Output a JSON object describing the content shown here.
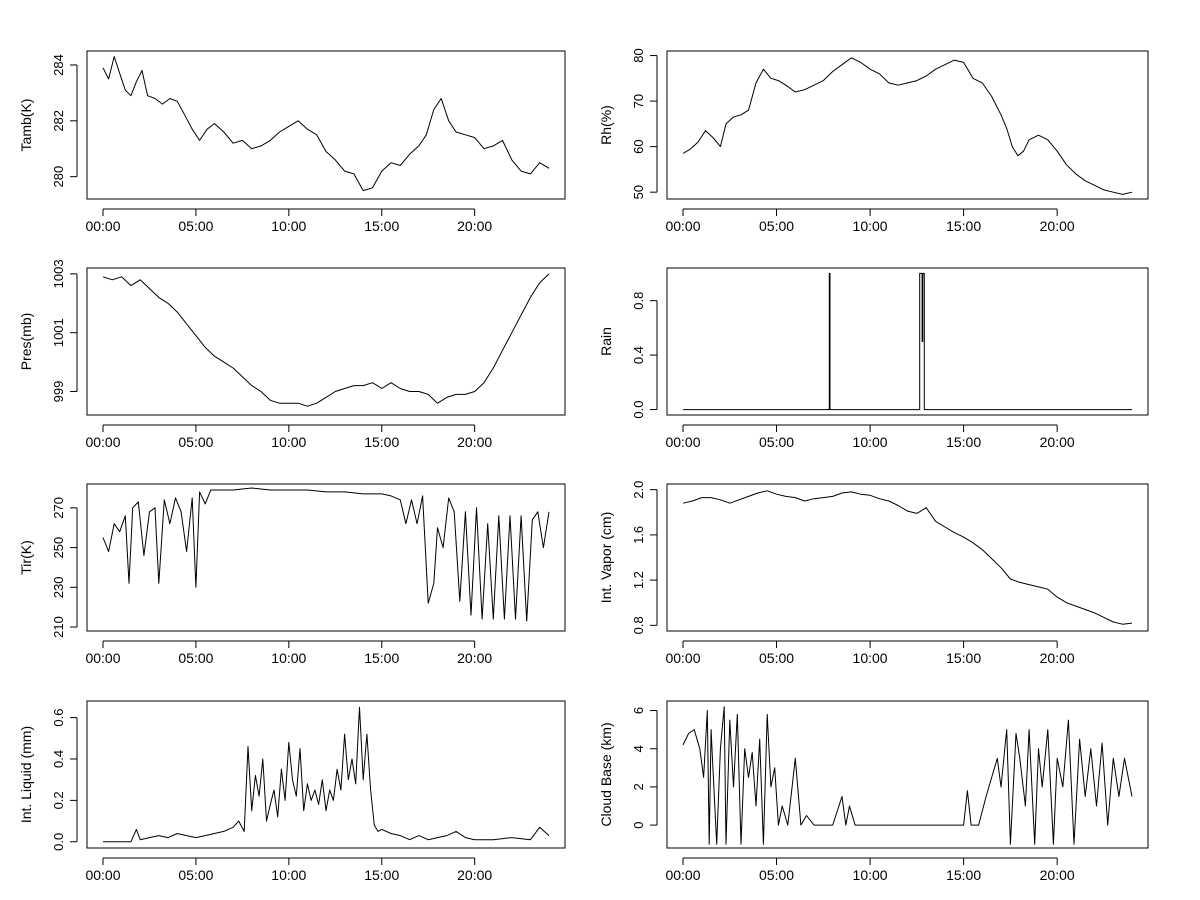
{
  "chart_data": [
    {
      "type": "line",
      "ylabel": "Tamb(K)",
      "xlim": [
        0,
        24
      ],
      "ylim": [
        279.2,
        284.5
      ],
      "x_ticks": [
        0,
        5,
        10,
        15,
        20
      ],
      "x_tick_labels": [
        "00:00",
        "05:00",
        "10:00",
        "15:00",
        "20:00"
      ],
      "y_ticks": [
        280,
        282,
        284
      ],
      "y_tick_labels": [
        "280",
        "282",
        "284"
      ],
      "x": [
        0,
        0.3,
        0.6,
        0.9,
        1.2,
        1.5,
        1.8,
        2.1,
        2.4,
        2.8,
        3.2,
        3.6,
        4.0,
        4.4,
        4.8,
        5.2,
        5.6,
        6.0,
        6.5,
        7.0,
        7.5,
        8.0,
        8.5,
        9.0,
        9.5,
        10.0,
        10.5,
        11.0,
        11.5,
        12.0,
        12.5,
        13.0,
        13.5,
        14.0,
        14.5,
        15.0,
        15.5,
        16.0,
        16.5,
        17.0,
        17.4,
        17.8,
        18.2,
        18.6,
        19.0,
        19.5,
        20.0,
        20.5,
        21.0,
        21.5,
        22.0,
        22.5,
        23.0,
        23.5,
        24.0
      ],
      "y": [
        283.9,
        283.5,
        284.3,
        283.7,
        283.1,
        282.9,
        283.4,
        283.8,
        282.9,
        282.8,
        282.6,
        282.8,
        282.7,
        282.2,
        281.7,
        281.3,
        281.7,
        281.9,
        281.6,
        281.2,
        281.3,
        281.0,
        281.1,
        281.3,
        281.6,
        281.8,
        282.0,
        281.7,
        281.5,
        280.9,
        280.6,
        280.2,
        280.1,
        279.5,
        279.6,
        280.2,
        280.5,
        280.4,
        280.8,
        281.1,
        281.5,
        282.4,
        282.8,
        282.0,
        281.6,
        281.5,
        281.4,
        281.0,
        281.1,
        281.3,
        280.6,
        280.2,
        280.1,
        280.5,
        280.3
      ]
    },
    {
      "type": "line",
      "ylabel": "Rh(%)",
      "xlim": [
        0,
        24
      ],
      "ylim": [
        48.5,
        81
      ],
      "x_ticks": [
        0,
        5,
        10,
        15,
        20
      ],
      "x_tick_labels": [
        "00:00",
        "05:00",
        "10:00",
        "15:00",
        "20:00"
      ],
      "y_ticks": [
        50,
        60,
        70,
        80
      ],
      "y_tick_labels": [
        "50",
        "60",
        "70",
        "80"
      ],
      "x": [
        0,
        0.4,
        0.8,
        1.2,
        1.6,
        2.0,
        2.3,
        2.7,
        3.1,
        3.5,
        3.9,
        4.3,
        4.7,
        5.1,
        5.5,
        6.0,
        6.5,
        7.0,
        7.5,
        8.0,
        8.5,
        9.0,
        9.5,
        10.0,
        10.5,
        11.0,
        11.5,
        12.0,
        12.5,
        13.0,
        13.5,
        14.0,
        14.5,
        15.0,
        15.5,
        16.0,
        16.5,
        17.0,
        17.3,
        17.6,
        17.9,
        18.2,
        18.5,
        19.0,
        19.5,
        20.0,
        20.5,
        21.0,
        21.5,
        22.0,
        22.5,
        23.0,
        23.5,
        24.0
      ],
      "y": [
        58.5,
        59.5,
        61.0,
        63.5,
        62.0,
        60.0,
        65.0,
        66.5,
        67.0,
        68.0,
        74.0,
        77.0,
        75.0,
        74.5,
        73.5,
        72.0,
        72.5,
        73.5,
        74.5,
        76.5,
        78.0,
        79.5,
        78.5,
        77.0,
        76.0,
        74.0,
        73.5,
        74.0,
        74.5,
        75.5,
        77.0,
        78.0,
        79.0,
        78.5,
        75.0,
        74.0,
        71.0,
        67.0,
        64.0,
        60.0,
        58.0,
        59.0,
        61.5,
        62.5,
        61.5,
        59.0,
        56.0,
        54.0,
        52.5,
        51.5,
        50.5,
        50.0,
        49.5,
        50.0
      ]
    },
    {
      "type": "line",
      "ylabel": "Pres(mb)",
      "xlim": [
        0,
        24
      ],
      "ylim": [
        998.2,
        1003.2
      ],
      "x_ticks": [
        0,
        5,
        10,
        15,
        20
      ],
      "x_tick_labels": [
        "00:00",
        "05:00",
        "10:00",
        "15:00",
        "20:00"
      ],
      "y_ticks": [
        999,
        1001,
        1003
      ],
      "y_tick_labels": [
        "999",
        "1001",
        "1003"
      ],
      "x": [
        0,
        0.5,
        1.0,
        1.5,
        2.0,
        2.5,
        3.0,
        3.5,
        4.0,
        4.5,
        5.0,
        5.5,
        6.0,
        6.5,
        7.0,
        7.5,
        8.0,
        8.5,
        9.0,
        9.5,
        10.0,
        10.5,
        11.0,
        11.5,
        12.0,
        12.5,
        13.0,
        13.5,
        14.0,
        14.5,
        15.0,
        15.5,
        16.0,
        16.5,
        17.0,
        17.5,
        18.0,
        18.5,
        19.0,
        19.5,
        20.0,
        20.5,
        21.0,
        21.5,
        22.0,
        22.5,
        23.0,
        23.5,
        24.0
      ],
      "y": [
        1002.9,
        1002.8,
        1002.9,
        1002.6,
        1002.8,
        1002.5,
        1002.2,
        1002.0,
        1001.7,
        1001.3,
        1000.9,
        1000.5,
        1000.2,
        1000.0,
        999.8,
        999.5,
        999.2,
        999.0,
        998.7,
        998.6,
        998.6,
        998.6,
        998.5,
        998.6,
        998.8,
        999.0,
        999.1,
        999.2,
        999.2,
        999.3,
        999.1,
        999.3,
        999.1,
        999.0,
        999.0,
        998.9,
        998.6,
        998.8,
        998.9,
        998.9,
        999.0,
        999.3,
        999.8,
        1000.4,
        1001.0,
        1001.6,
        1002.2,
        1002.7,
        1003.0
      ]
    },
    {
      "type": "line",
      "ylabel": "Rain",
      "xlim": [
        0,
        24
      ],
      "ylim": [
        -0.04,
        1.04
      ],
      "x_ticks": [
        0,
        5,
        10,
        15,
        20
      ],
      "x_tick_labels": [
        "00:00",
        "05:00",
        "10:00",
        "15:00",
        "20:00"
      ],
      "y_ticks": [
        0.0,
        0.4,
        0.8
      ],
      "y_tick_labels": [
        "0.0",
        "0.4",
        "0.8"
      ],
      "x": [
        0,
        7.82,
        7.82,
        7.86,
        7.86,
        12.65,
        12.65,
        12.78,
        12.78,
        12.82,
        12.82,
        12.9,
        12.9,
        24.0
      ],
      "y": [
        0,
        0,
        1,
        1,
        0,
        0,
        1,
        1,
        0.5,
        0.5,
        1,
        1,
        0,
        0
      ]
    },
    {
      "type": "line",
      "ylabel": "Tir(K)",
      "xlim": [
        0,
        24
      ],
      "ylim": [
        208,
        282
      ],
      "x_ticks": [
        0,
        5,
        10,
        15,
        20
      ],
      "x_tick_labels": [
        "00:00",
        "05:00",
        "10:00",
        "15:00",
        "20:00"
      ],
      "y_ticks": [
        210,
        230,
        250,
        270
      ],
      "y_tick_labels": [
        "210",
        "230",
        "250",
        "270"
      ],
      "x": [
        0,
        0.3,
        0.6,
        0.9,
        1.2,
        1.4,
        1.6,
        1.9,
        2.2,
        2.5,
        2.8,
        3.0,
        3.3,
        3.6,
        3.9,
        4.2,
        4.5,
        4.8,
        5.0,
        5.2,
        5.5,
        5.8,
        6.1,
        6.5,
        7.0,
        8.0,
        9.0,
        10.0,
        11.0,
        12.0,
        13.0,
        14.0,
        15.0,
        15.5,
        16.0,
        16.3,
        16.6,
        16.9,
        17.2,
        17.5,
        17.8,
        18.0,
        18.3,
        18.6,
        18.9,
        19.2,
        19.5,
        19.8,
        20.1,
        20.4,
        20.7,
        21.0,
        21.3,
        21.6,
        21.9,
        22.2,
        22.5,
        22.8,
        23.1,
        23.4,
        23.7,
        24.0
      ],
      "y": [
        255,
        248,
        262,
        258,
        266,
        232,
        270,
        273,
        246,
        268,
        270,
        232,
        274,
        262,
        275,
        268,
        248,
        275,
        230,
        278,
        272,
        279,
        279,
        279,
        279,
        280,
        279,
        279,
        279,
        278,
        278,
        277,
        277,
        276,
        274,
        262,
        274,
        262,
        276,
        222,
        232,
        260,
        250,
        275,
        268,
        223,
        268,
        216,
        270,
        214,
        262,
        214,
        266,
        214,
        266,
        214,
        266,
        213,
        264,
        268,
        250,
        268
      ]
    },
    {
      "type": "line",
      "ylabel": "Int. Vapor (cm)",
      "xlim": [
        0,
        24
      ],
      "ylim": [
        0.75,
        2.05
      ],
      "x_ticks": [
        0,
        5,
        10,
        15,
        20
      ],
      "x_tick_labels": [
        "00:00",
        "05:00",
        "10:00",
        "15:00",
        "20:00"
      ],
      "y_ticks": [
        0.8,
        1.2,
        1.6,
        2.0
      ],
      "y_tick_labels": [
        "0.8",
        "1.2",
        "1.6",
        "2.0"
      ],
      "x": [
        0,
        0.5,
        1.0,
        1.5,
        2.0,
        2.5,
        3.0,
        3.5,
        4.0,
        4.5,
        5.0,
        5.5,
        6.0,
        6.5,
        7.0,
        7.5,
        8.0,
        8.5,
        9.0,
        9.5,
        10.0,
        10.5,
        11.0,
        11.5,
        12.0,
        12.5,
        13.0,
        13.5,
        14.0,
        14.5,
        15.0,
        15.5,
        16.0,
        16.5,
        17.0,
        17.5,
        18.0,
        18.5,
        19.0,
        19.5,
        20.0,
        20.5,
        21.0,
        21.5,
        22.0,
        22.5,
        23.0,
        23.5,
        24.0
      ],
      "y": [
        1.88,
        1.9,
        1.93,
        1.93,
        1.91,
        1.88,
        1.91,
        1.94,
        1.97,
        1.99,
        1.96,
        1.94,
        1.93,
        1.9,
        1.92,
        1.93,
        1.94,
        1.97,
        1.98,
        1.96,
        1.95,
        1.92,
        1.9,
        1.86,
        1.81,
        1.79,
        1.84,
        1.72,
        1.67,
        1.62,
        1.58,
        1.53,
        1.47,
        1.39,
        1.31,
        1.21,
        1.18,
        1.16,
        1.14,
        1.12,
        1.05,
        1.0,
        0.97,
        0.94,
        0.91,
        0.87,
        0.83,
        0.81,
        0.82
      ]
    },
    {
      "type": "line",
      "ylabel": "Int. Liquid (mm)",
      "xlim": [
        0,
        24
      ],
      "ylim": [
        -0.03,
        0.68
      ],
      "x_ticks": [
        0,
        5,
        10,
        15,
        20
      ],
      "x_tick_labels": [
        "00:00",
        "05:00",
        "10:00",
        "15:00",
        "20:00"
      ],
      "y_ticks": [
        0.0,
        0.2,
        0.4,
        0.6
      ],
      "y_tick_labels": [
        "0.0",
        "0.2",
        "0.4",
        "0.6"
      ],
      "x": [
        0,
        1.5,
        1.8,
        2.0,
        2.5,
        3.0,
        3.5,
        4.0,
        4.5,
        5.0,
        5.5,
        6.0,
        6.5,
        7.0,
        7.3,
        7.6,
        7.8,
        8.0,
        8.2,
        8.4,
        8.6,
        8.8,
        9.0,
        9.2,
        9.4,
        9.6,
        9.8,
        10.0,
        10.2,
        10.4,
        10.6,
        10.8,
        11.0,
        11.2,
        11.4,
        11.6,
        11.8,
        12.0,
        12.2,
        12.4,
        12.6,
        12.8,
        13.0,
        13.2,
        13.4,
        13.6,
        13.8,
        14.0,
        14.2,
        14.4,
        14.6,
        14.8,
        15.0,
        15.5,
        16.0,
        16.5,
        17.0,
        17.5,
        18.0,
        18.5,
        19.0,
        19.5,
        20.0,
        21.0,
        22.0,
        23.0,
        23.5,
        24.0
      ],
      "y": [
        0,
        0,
        0.06,
        0.01,
        0.02,
        0.03,
        0.02,
        0.04,
        0.03,
        0.02,
        0.03,
        0.04,
        0.05,
        0.07,
        0.1,
        0.05,
        0.46,
        0.15,
        0.32,
        0.22,
        0.4,
        0.1,
        0.18,
        0.25,
        0.12,
        0.35,
        0.2,
        0.48,
        0.3,
        0.22,
        0.45,
        0.15,
        0.28,
        0.2,
        0.25,
        0.18,
        0.3,
        0.15,
        0.25,
        0.2,
        0.35,
        0.25,
        0.52,
        0.3,
        0.4,
        0.28,
        0.65,
        0.3,
        0.52,
        0.25,
        0.08,
        0.05,
        0.06,
        0.04,
        0.03,
        0.01,
        0.03,
        0.01,
        0.02,
        0.03,
        0.05,
        0.02,
        0.01,
        0.01,
        0.02,
        0.01,
        0.07,
        0.03
      ]
    },
    {
      "type": "line",
      "ylabel": "Cloud Base (km)",
      "xlim": [
        0,
        24
      ],
      "ylim": [
        -1.2,
        6.5
      ],
      "x_ticks": [
        0,
        5,
        10,
        15,
        20
      ],
      "x_tick_labels": [
        "00:00",
        "05:00",
        "10:00",
        "15:00",
        "20:00"
      ],
      "y_ticks": [
        0,
        2,
        4,
        6
      ],
      "y_tick_labels": [
        "0",
        "2",
        "4",
        "6"
      ],
      "x": [
        0,
        0.3,
        0.6,
        0.9,
        1.1,
        1.3,
        1.4,
        1.5,
        1.6,
        1.8,
        2.0,
        2.2,
        2.3,
        2.5,
        2.7,
        2.9,
        3.1,
        3.3,
        3.5,
        3.7,
        3.9,
        4.1,
        4.3,
        4.5,
        4.7,
        4.9,
        5.1,
        5.3,
        5.6,
        6.0,
        6.3,
        6.6,
        7.0,
        7.5,
        8.0,
        8.5,
        8.7,
        8.9,
        9.2,
        10.0,
        11.0,
        12.0,
        13.0,
        14.0,
        15.0,
        15.2,
        15.4,
        15.8,
        16.2,
        16.5,
        16.8,
        17.0,
        17.3,
        17.5,
        17.8,
        18.0,
        18.3,
        18.5,
        18.8,
        19.0,
        19.2,
        19.5,
        19.8,
        20.0,
        20.3,
        20.6,
        20.9,
        21.2,
        21.5,
        21.8,
        22.1,
        22.4,
        22.7,
        23.0,
        23.3,
        23.6,
        24.0
      ],
      "y": [
        4.2,
        4.8,
        5.0,
        4.0,
        2.5,
        6.0,
        -1.0,
        5.0,
        3.0,
        -1.0,
        4.0,
        6.2,
        -1.0,
        5.5,
        2.0,
        5.8,
        -1.0,
        4.0,
        2.5,
        3.8,
        1.0,
        4.5,
        -1.0,
        5.8,
        2.0,
        3.0,
        0,
        1.0,
        0,
        3.5,
        0,
        0.5,
        0,
        0,
        0,
        1.5,
        0,
        1.0,
        0,
        0,
        0,
        0,
        0,
        0,
        0,
        1.8,
        0,
        0,
        1.5,
        2.5,
        3.5,
        2.0,
        5.0,
        -1.0,
        4.8,
        3.5,
        1.0,
        5.0,
        -1.0,
        4.0,
        2.0,
        5.0,
        -1.0,
        3.5,
        2.0,
        5.5,
        -1.0,
        4.5,
        1.5,
        4.0,
        1.0,
        4.3,
        0,
        3.5,
        1.5,
        3.5,
        1.5
      ]
    }
  ]
}
